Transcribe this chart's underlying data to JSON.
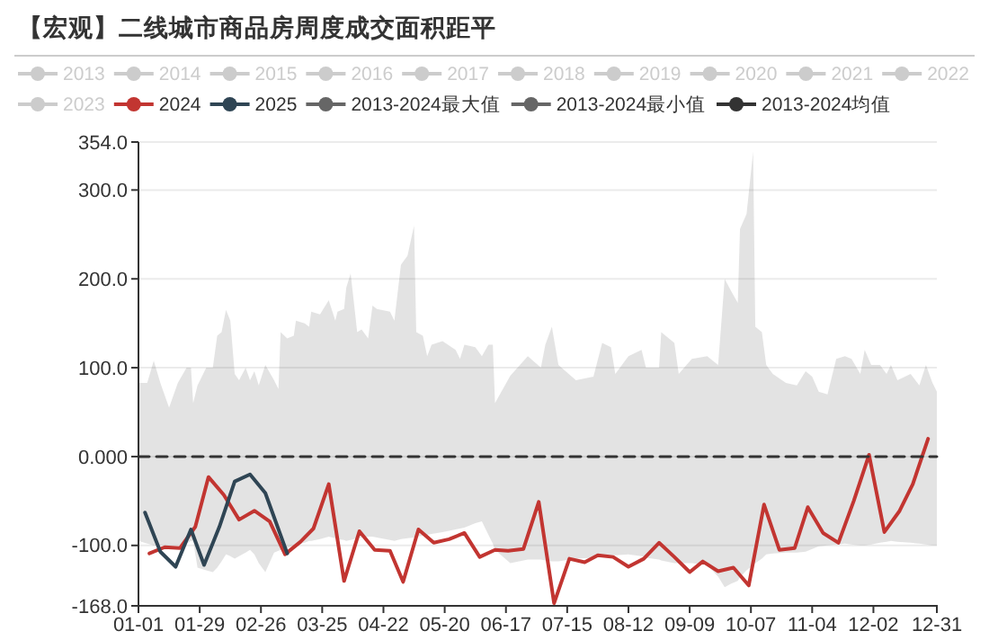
{
  "chart_data": {
    "type": "line",
    "title": "【宏观】二线城市商品房周度成交面积距平",
    "legend": "top",
    "grid": "y",
    "ylim": [
      -168,
      354
    ],
    "yticks": [
      {
        "value": 354,
        "label": "354.0"
      },
      {
        "value": 300,
        "label": "300.0"
      },
      {
        "value": 200,
        "label": "200.0"
      },
      {
        "value": 100,
        "label": "100.0"
      },
      {
        "value": 0,
        "label": "0.000"
      },
      {
        "value": -100,
        "label": "-100.0"
      },
      {
        "value": -168,
        "label": "-168.0"
      }
    ],
    "xlim": [
      "--01-01",
      "--12-31"
    ],
    "xticks": [
      {
        "value": "--01-01",
        "label": "01-01"
      },
      {
        "value": "--01-29",
        "label": "01-29"
      },
      {
        "value": "--02-26",
        "label": "02-26"
      },
      {
        "value": "--03-25",
        "label": "03-25"
      },
      {
        "value": "--04-22",
        "label": "04-22"
      },
      {
        "value": "--05-20",
        "label": "05-20"
      },
      {
        "value": "--06-17",
        "label": "06-17"
      },
      {
        "value": "--07-15",
        "label": "07-15"
      },
      {
        "value": "--08-12",
        "label": "08-12"
      },
      {
        "value": "--09-09",
        "label": "09-09"
      },
      {
        "value": "--10-07",
        "label": "10-07"
      },
      {
        "value": "--11-04",
        "label": "11-04"
      },
      {
        "value": "--12-02",
        "label": "12-02"
      },
      {
        "value": "--12-31",
        "label": "12-31"
      }
    ],
    "series": [
      {
        "name": "2013",
        "color": "#cccccc"
      },
      {
        "name": "2014",
        "color": "#cccccc"
      },
      {
        "name": "2015",
        "color": "#cccccc"
      },
      {
        "name": "2016",
        "color": "#cccccc"
      },
      {
        "name": "2017",
        "color": "#cccccc"
      },
      {
        "name": "2018",
        "color": "#cccccc"
      },
      {
        "name": "2019",
        "color": "#cccccc"
      },
      {
        "name": "2020",
        "color": "#cccccc"
      },
      {
        "name": "2021",
        "color": "#cccccc"
      },
      {
        "name": "2022",
        "color": "#cccccc"
      },
      {
        "name": "2023",
        "color": "#cccccc"
      },
      {
        "name": "2024",
        "type": "line",
        "color": "#c23531",
        "x": [
          "--01-06",
          "--01-13",
          "--01-20",
          "--01-27",
          "--02-02",
          "--02-09",
          "--02-16",
          "--02-23",
          "--03-01",
          "--03-08",
          "--03-15",
          "--03-21",
          "--03-28",
          "--04-04",
          "--04-11",
          "--04-18",
          "--04-25",
          "--05-01",
          "--05-08",
          "--05-15",
          "--05-22",
          "--05-29",
          "--06-05",
          "--06-12",
          "--06-18",
          "--06-25",
          "--07-02",
          "--07-09",
          "--07-16",
          "--07-23",
          "--07-29",
          "--08-05",
          "--08-12",
          "--08-19",
          "--08-26",
          "--09-02",
          "--09-09",
          "--09-15",
          "--09-22",
          "--09-29",
          "--10-06",
          "--10-13",
          "--10-20",
          "--10-27",
          "--11-02",
          "--11-09",
          "--11-16",
          "--11-23",
          "--11-30",
          "--12-07",
          "--12-14",
          "--12-20",
          "--12-27"
        ],
        "values": [
          -109,
          -102,
          -103,
          -79,
          -23,
          -43,
          -71,
          -61,
          -73,
          -110,
          -96,
          -81,
          -31,
          -140,
          -84,
          -105,
          -106,
          -141,
          -82,
          -97,
          -93,
          -86,
          -113,
          -105,
          -106,
          -104,
          -51,
          -165,
          -115,
          -119,
          -111,
          -113,
          -124,
          -115,
          -97,
          -113,
          -130,
          -118,
          -129,
          -125,
          -145,
          -54,
          -105,
          -103,
          -57,
          -86,
          -97,
          -50,
          2,
          -85,
          -61,
          -31,
          20
        ]
      },
      {
        "name": "2025",
        "type": "line",
        "color": "#2f4554",
        "x": [
          "--01-04",
          "--01-11",
          "--01-18",
          "--01-25",
          "--01-31",
          "--02-07",
          "--02-14",
          "--02-21",
          "--02-28",
          "--03-09"
        ],
        "values": [
          -63,
          -107,
          -124,
          -82,
          -122,
          -79,
          -28,
          -20,
          -41,
          -109
        ]
      },
      {
        "name": "2013-2024最大值",
        "type": "area",
        "color": "#666666",
        "x": [
          "--01-01",
          "--01-05",
          "--01-08",
          "--01-11",
          "--01-15",
          "--01-19",
          "--01-23",
          "--01-25",
          "--01-26",
          "--01-28",
          "--02-01",
          "--02-04",
          "--02-06",
          "--02-08",
          "--02-10",
          "--02-12",
          "--02-14",
          "--02-16",
          "--02-19",
          "--02-21",
          "--02-23",
          "--02-25",
          "--02-28",
          "--03-03",
          "--03-05",
          "--03-06",
          "--03-09",
          "--03-12",
          "--03-13",
          "--03-17",
          "--03-19",
          "--03-20",
          "--03-24",
          "--03-28",
          "--03-31",
          "--04-01",
          "--04-04",
          "--04-05",
          "--04-07",
          "--04-10",
          "--04-12",
          "--04-15",
          "--04-17",
          "--04-19",
          "--04-25",
          "--04-27",
          "--04-30",
          "--05-03",
          "--05-06",
          "--05-07",
          "--05-10",
          "--05-12",
          "--05-14",
          "--05-19",
          "--05-25",
          "--05-27",
          "--05-29",
          "--06-03",
          "--06-06",
          "--06-09",
          "--06-11",
          "--06-12",
          "--06-19",
          "--06-27",
          "--07-03",
          "--07-05",
          "--07-08",
          "--07-11",
          "--07-19",
          "--07-27",
          "--07-31",
          "--08-04",
          "--08-06",
          "--08-12",
          "--08-18",
          "--08-20",
          "--08-26",
          "--08-27",
          "--09-02",
          "--09-04",
          "--09-10",
          "--09-17",
          "--09-22",
          "--09-25",
          "--09-28",
          "--10-01",
          "--10-02",
          "--10-05",
          "--10-08",
          "--10-09",
          "--10-12",
          "--10-14",
          "--10-17",
          "--10-23",
          "--10-28",
          "--11-01",
          "--11-04",
          "--11-07",
          "--11-11",
          "--11-15",
          "--11-19",
          "--11-22",
          "--11-26",
          "--11-28",
          "--12-01",
          "--12-05",
          "--12-08",
          "--12-10",
          "--12-13",
          "--12-19",
          "--12-23",
          "--12-26",
          "--12-29",
          "--12-31"
        ],
        "values": [
          83,
          83,
          108,
          83,
          55,
          83,
          100,
          100,
          60,
          80,
          100,
          100,
          136,
          140,
          165,
          153,
          93,
          86,
          100,
          86,
          96,
          80,
          103,
          86,
          76,
          140,
          133,
          136,
          153,
          150,
          146,
          163,
          160,
          176,
          153,
          163,
          166,
          190,
          206,
          140,
          143,
          133,
          170,
          166,
          163,
          153,
          216,
          226,
          260,
          140,
          136,
          113,
          126,
          130,
          120,
          110,
          126,
          123,
          113,
          126,
          126,
          60,
          91,
          113,
          100,
          126,
          146,
          103,
          86,
          90,
          128,
          123,
          93,
          113,
          120,
          100,
          100,
          140,
          128,
          93,
          110,
          113,
          103,
          200,
          186,
          173,
          256,
          273,
          343,
          146,
          140,
          103,
          93,
          83,
          80,
          96,
          90,
          73,
          70,
          110,
          113,
          110,
          93,
          120,
          103,
          103,
          93,
          103,
          86,
          93,
          80,
          103,
          83,
          73
        ]
      },
      {
        "name": "2013-2024最小值",
        "type": "area",
        "color": "#666666",
        "x": [
          "--01-01",
          "--01-05",
          "--01-08",
          "--01-11",
          "--01-15",
          "--01-19",
          "--01-23",
          "--01-25",
          "--01-26",
          "--01-28",
          "--02-01",
          "--02-04",
          "--02-06",
          "--02-08",
          "--02-10",
          "--02-12",
          "--02-14",
          "--02-16",
          "--02-19",
          "--02-21",
          "--02-23",
          "--02-25",
          "--02-28",
          "--03-03",
          "--03-05",
          "--03-06",
          "--03-09",
          "--03-12",
          "--03-13",
          "--03-17",
          "--03-19",
          "--03-20",
          "--03-24",
          "--03-28",
          "--03-31",
          "--04-01",
          "--04-04",
          "--04-05",
          "--04-07",
          "--04-10",
          "--04-12",
          "--04-15",
          "--04-17",
          "--04-19",
          "--04-25",
          "--04-27",
          "--04-30",
          "--05-03",
          "--05-06",
          "--05-07",
          "--05-10",
          "--05-12",
          "--05-14",
          "--05-19",
          "--05-25",
          "--05-27",
          "--05-29",
          "--06-03",
          "--06-06",
          "--06-09",
          "--06-11",
          "--06-12",
          "--06-19",
          "--06-27",
          "--07-03",
          "--07-05",
          "--07-08",
          "--07-11",
          "--07-19",
          "--07-27",
          "--07-31",
          "--08-04",
          "--08-06",
          "--08-12",
          "--08-18",
          "--08-20",
          "--08-26",
          "--08-27",
          "--09-02",
          "--09-04",
          "--09-10",
          "--09-17",
          "--09-22",
          "--09-25",
          "--09-28",
          "--10-01",
          "--10-02",
          "--10-05",
          "--10-08",
          "--10-09",
          "--10-12",
          "--10-14",
          "--10-17",
          "--10-23",
          "--10-28",
          "--11-01",
          "--11-04",
          "--11-07",
          "--11-11",
          "--11-15",
          "--11-19",
          "--11-22",
          "--11-26",
          "--11-28",
          "--12-01",
          "--12-05",
          "--12-08",
          "--12-10",
          "--12-13",
          "--12-19",
          "--12-23",
          "--12-26",
          "--12-29",
          "--12-31"
        ],
        "values": [
          -95,
          -98,
          -100,
          -100,
          -100,
          -100,
          -98,
          -95,
          -95,
          -125,
          -128,
          -130,
          -125,
          -118,
          -110,
          -112,
          -115,
          -112,
          -108,
          -105,
          -110,
          -120,
          -130,
          -108,
          -106,
          -105,
          -103,
          -100,
          -99,
          -97,
          -95,
          -95,
          -93,
          -90,
          -92,
          -93,
          -94,
          -95,
          -94,
          -92,
          -91,
          -90,
          -90,
          -91,
          -94,
          -95,
          -93,
          -92,
          -91,
          -90,
          -89,
          -88,
          -87,
          -85,
          -82,
          -81,
          -80,
          -75,
          -73,
          -88,
          -98,
          -105,
          -120,
          -116,
          -116,
          -117,
          -118,
          -118,
          -115,
          -114,
          -112,
          -111,
          -111,
          -110,
          -112,
          -114,
          -116,
          -117,
          -120,
          -120,
          -120,
          -122,
          -135,
          -147,
          -143,
          -140,
          -136,
          -128,
          -122,
          -120,
          -115,
          -110,
          -109,
          -108,
          -108,
          -107,
          -104,
          -101,
          -100,
          -99,
          -98,
          -99,
          -100,
          -100,
          -99,
          -97,
          -96,
          -95,
          -96,
          -97,
          -98,
          -99,
          -100,
          -100
        ]
      },
      {
        "name": "2013-2024均值",
        "type": "line",
        "color": "#333333",
        "line_style": "dashed",
        "x": [
          "--01-01",
          "--12-31"
        ],
        "values": [
          0,
          0
        ]
      }
    ]
  }
}
